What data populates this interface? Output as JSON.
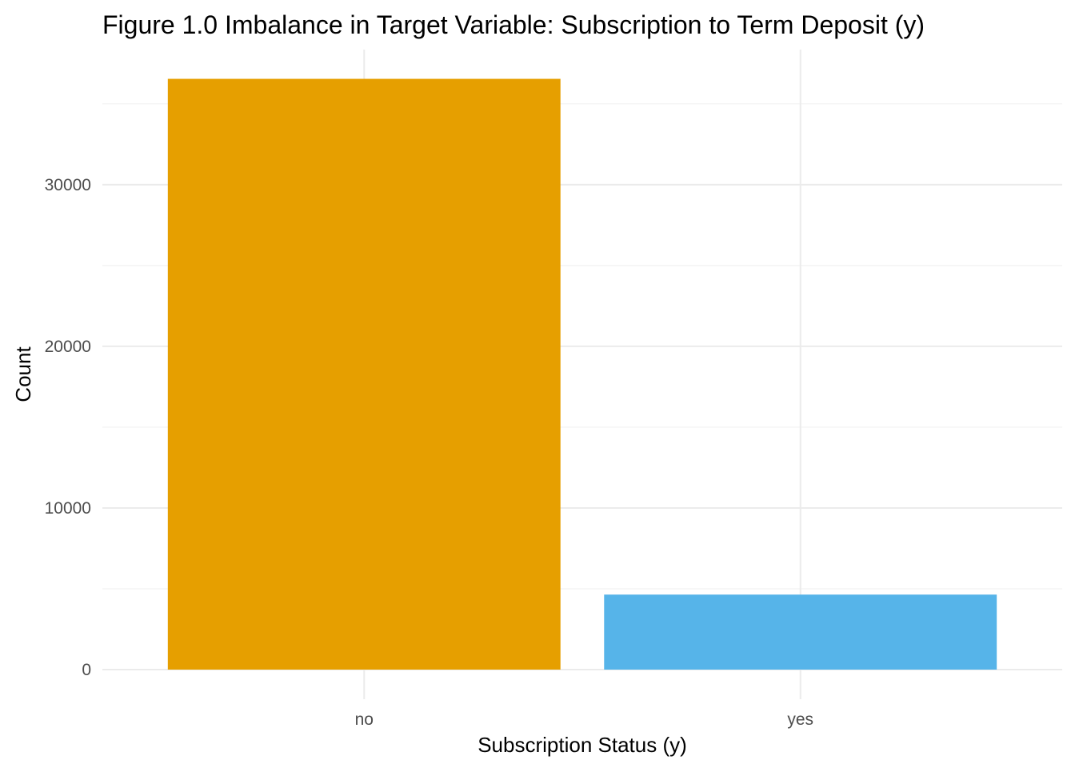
{
  "chart_data": {
    "type": "bar",
    "title": "Figure 1.0 Imbalance in Target Variable: Subscription to Term Deposit (y)",
    "xlabel": "Subscription Status (y)",
    "ylabel": "Count",
    "categories": [
      "no",
      "yes"
    ],
    "values": [
      36548,
      4640
    ],
    "colors": [
      "#E69F00",
      "#56B4E9"
    ],
    "ylim": [
      0,
      38000
    ],
    "yticks": [
      0,
      10000,
      20000,
      30000
    ],
    "yticks_minor": [
      5000,
      15000,
      25000,
      35000
    ],
    "grid": true,
    "legend": "none"
  }
}
